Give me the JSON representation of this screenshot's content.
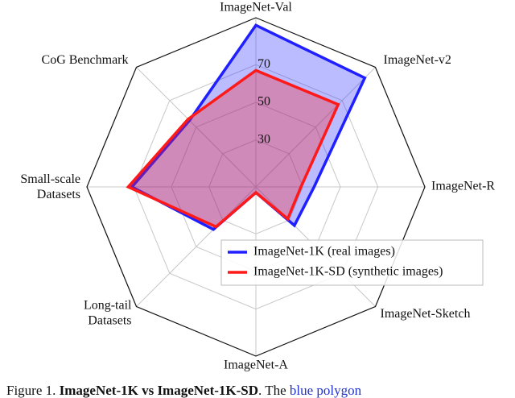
{
  "chart_data": {
    "type": "radar",
    "categories": [
      "ImageNet-Val",
      "ImageNet-v2",
      "ImageNet-R",
      "ImageNet-Sketch",
      "ImageNet-A",
      "Long-tail Datasets",
      "Small-scale Datasets",
      "CoG Benchmark"
    ],
    "rlim": [
      5,
      95
    ],
    "rticks": [
      30,
      50,
      70
    ],
    "grid": true,
    "legend": "lower right",
    "series": [
      {
        "name": "ImageNet-1K (real images)",
        "color": "#1f1fff",
        "values": [
          91,
          87,
          36,
          34,
          8,
          37,
          71,
          55
        ]
      },
      {
        "name": "ImageNet-1K-SD (synthetic images)",
        "color": "#ff1a1a",
        "values": [
          67,
          67,
          29,
          29,
          8,
          35,
          73,
          56
        ]
      }
    ]
  },
  "caption": {
    "parts": [
      "Figure 1. ",
      "ImageNet-1K vs ImageNet-1K-SD",
      ". The ",
      "blue polygon"
    ]
  }
}
